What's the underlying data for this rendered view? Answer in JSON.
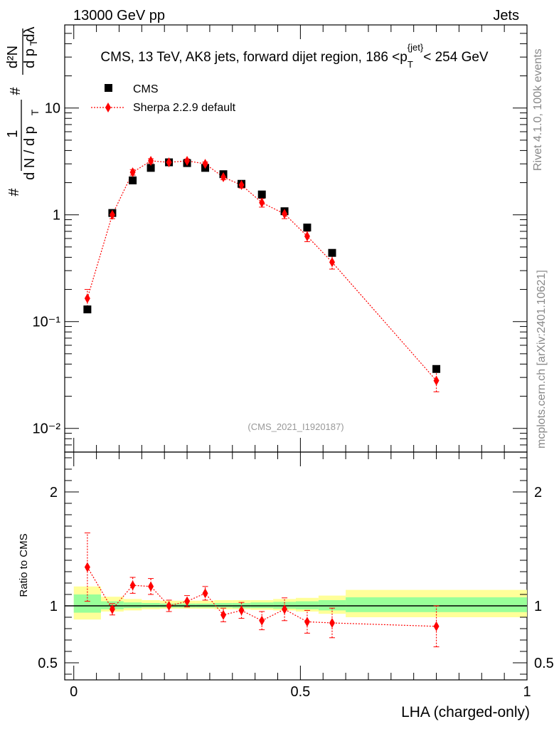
{
  "header": {
    "left": "13000 GeV pp",
    "right": "Jets"
  },
  "side_labels": {
    "rivet": "Rivet 4.1.0,  100k events",
    "mcplots": "mcplots.cern.ch [arXiv:2401.10621]"
  },
  "chart_data": [
    {
      "type": "scatter",
      "title": "CMS, 13 TeV, AK8 jets, forward dijet region, 186 <p_T^{jet}< 254 GeV",
      "ylabel": "1/(dN/dp_T) d²N/(dp_T dλ)",
      "xlabel": "LHA (charged-only)",
      "yscale": "log",
      "ylim": [
        0.006,
        60
      ],
      "xlim": [
        -0.02,
        1.0
      ],
      "yticks": [
        {
          "value": 0.01,
          "label": "10⁻²"
        },
        {
          "value": 0.1,
          "label": "10⁻¹"
        },
        {
          "value": 1,
          "label": "1"
        },
        {
          "value": 10,
          "label": "10"
        }
      ],
      "watermark": "(CMS_2021_I1920187)",
      "legend": {
        "placement": "top-left",
        "entries": [
          "CMS",
          "Sherpa 2.2.9 default"
        ]
      },
      "series": [
        {
          "name": "CMS",
          "marker": "square",
          "color": "#000000",
          "x": [
            0.03,
            0.085,
            0.13,
            0.17,
            0.21,
            0.25,
            0.29,
            0.33,
            0.37,
            0.415,
            0.465,
            0.515,
            0.57,
            0.8
          ],
          "y": [
            0.13,
            1.04,
            2.1,
            2.75,
            3.1,
            3.05,
            2.75,
            2.4,
            1.95,
            1.55,
            1.08,
            0.76,
            0.44,
            0.036
          ]
        },
        {
          "name": "Sherpa 2.2.9 default",
          "marker": "diamond",
          "color": "#ff0000",
          "line": "dotted",
          "x": [
            0.03,
            0.085,
            0.13,
            0.17,
            0.21,
            0.25,
            0.29,
            0.33,
            0.37,
            0.415,
            0.465,
            0.515,
            0.57,
            0.8
          ],
          "y": [
            0.165,
            1.0,
            2.5,
            3.2,
            3.1,
            3.2,
            3.0,
            2.25,
            1.9,
            1.3,
            1.02,
            0.63,
            0.36,
            0.028
          ],
          "err": [
            0.035,
            0.08,
            0.15,
            0.15,
            0.12,
            0.13,
            0.12,
            0.12,
            0.12,
            0.12,
            0.1,
            0.07,
            0.05,
            0.006
          ]
        }
      ]
    },
    {
      "type": "scatter",
      "ylabel": "Ratio to CMS",
      "xlabel": "LHA (charged-only)",
      "ylim": [
        0.35,
        2.35
      ],
      "xlim": [
        -0.02,
        1.0
      ],
      "yticks": [
        {
          "value": 0.5,
          "label": "0.5"
        },
        {
          "value": 1,
          "label": "1"
        },
        {
          "value": 2,
          "label": "2"
        }
      ],
      "xticks": [
        {
          "value": 0,
          "label": "0"
        },
        {
          "value": 0.5,
          "label": "0.5"
        },
        {
          "value": 1,
          "label": "1"
        }
      ],
      "bands": [
        {
          "x0": 0.0,
          "x1": 0.06,
          "yellow": [
            0.88,
            1.17
          ],
          "green": [
            0.94,
            1.1
          ]
        },
        {
          "x0": 0.06,
          "x1": 0.11,
          "yellow": [
            0.95,
            1.08
          ],
          "green": [
            0.97,
            1.04
          ]
        },
        {
          "x0": 0.11,
          "x1": 0.15,
          "yellow": [
            0.96,
            1.06
          ],
          "green": [
            0.98,
            1.03
          ]
        },
        {
          "x0": 0.15,
          "x1": 0.19,
          "yellow": [
            0.97,
            1.05
          ],
          "green": [
            0.985,
            1.025
          ]
        },
        {
          "x0": 0.19,
          "x1": 0.23,
          "yellow": [
            0.975,
            1.045
          ],
          "green": [
            0.985,
            1.02
          ]
        },
        {
          "x0": 0.23,
          "x1": 0.27,
          "yellow": [
            0.975,
            1.045
          ],
          "green": [
            0.985,
            1.02
          ]
        },
        {
          "x0": 0.27,
          "x1": 0.31,
          "yellow": [
            0.975,
            1.045
          ],
          "green": [
            0.985,
            1.02
          ]
        },
        {
          "x0": 0.31,
          "x1": 0.35,
          "yellow": [
            0.97,
            1.05
          ],
          "green": [
            0.985,
            1.025
          ]
        },
        {
          "x0": 0.35,
          "x1": 0.39,
          "yellow": [
            0.97,
            1.05
          ],
          "green": [
            0.98,
            1.025
          ]
        },
        {
          "x0": 0.39,
          "x1": 0.44,
          "yellow": [
            0.965,
            1.05
          ],
          "green": [
            0.98,
            1.03
          ]
        },
        {
          "x0": 0.44,
          "x1": 0.49,
          "yellow": [
            0.96,
            1.06
          ],
          "green": [
            0.975,
            1.035
          ]
        },
        {
          "x0": 0.49,
          "x1": 0.54,
          "yellow": [
            0.95,
            1.07
          ],
          "green": [
            0.97,
            1.04
          ]
        },
        {
          "x0": 0.54,
          "x1": 0.6,
          "yellow": [
            0.93,
            1.09
          ],
          "green": [
            0.96,
            1.05
          ]
        },
        {
          "x0": 0.6,
          "x1": 1.0,
          "yellow": [
            0.9,
            1.14
          ],
          "green": [
            0.945,
            1.075
          ]
        }
      ],
      "series": [
        {
          "name": "Sherpa 2.2.9 default",
          "marker": "diamond",
          "color": "#ff0000",
          "line": "dotted",
          "x": [
            0.03,
            0.085,
            0.13,
            0.17,
            0.21,
            0.25,
            0.29,
            0.33,
            0.37,
            0.415,
            0.465,
            0.515,
            0.57,
            0.8
          ],
          "y": [
            1.34,
            0.97,
            1.18,
            1.17,
            1.0,
            1.04,
            1.11,
            0.92,
            0.96,
            0.87,
            0.97,
            0.86,
            0.85,
            0.82
          ],
          "err": [
            0.3,
            0.05,
            0.07,
            0.07,
            0.05,
            0.05,
            0.06,
            0.06,
            0.07,
            0.08,
            0.1,
            0.1,
            0.13,
            0.18
          ]
        }
      ]
    }
  ]
}
